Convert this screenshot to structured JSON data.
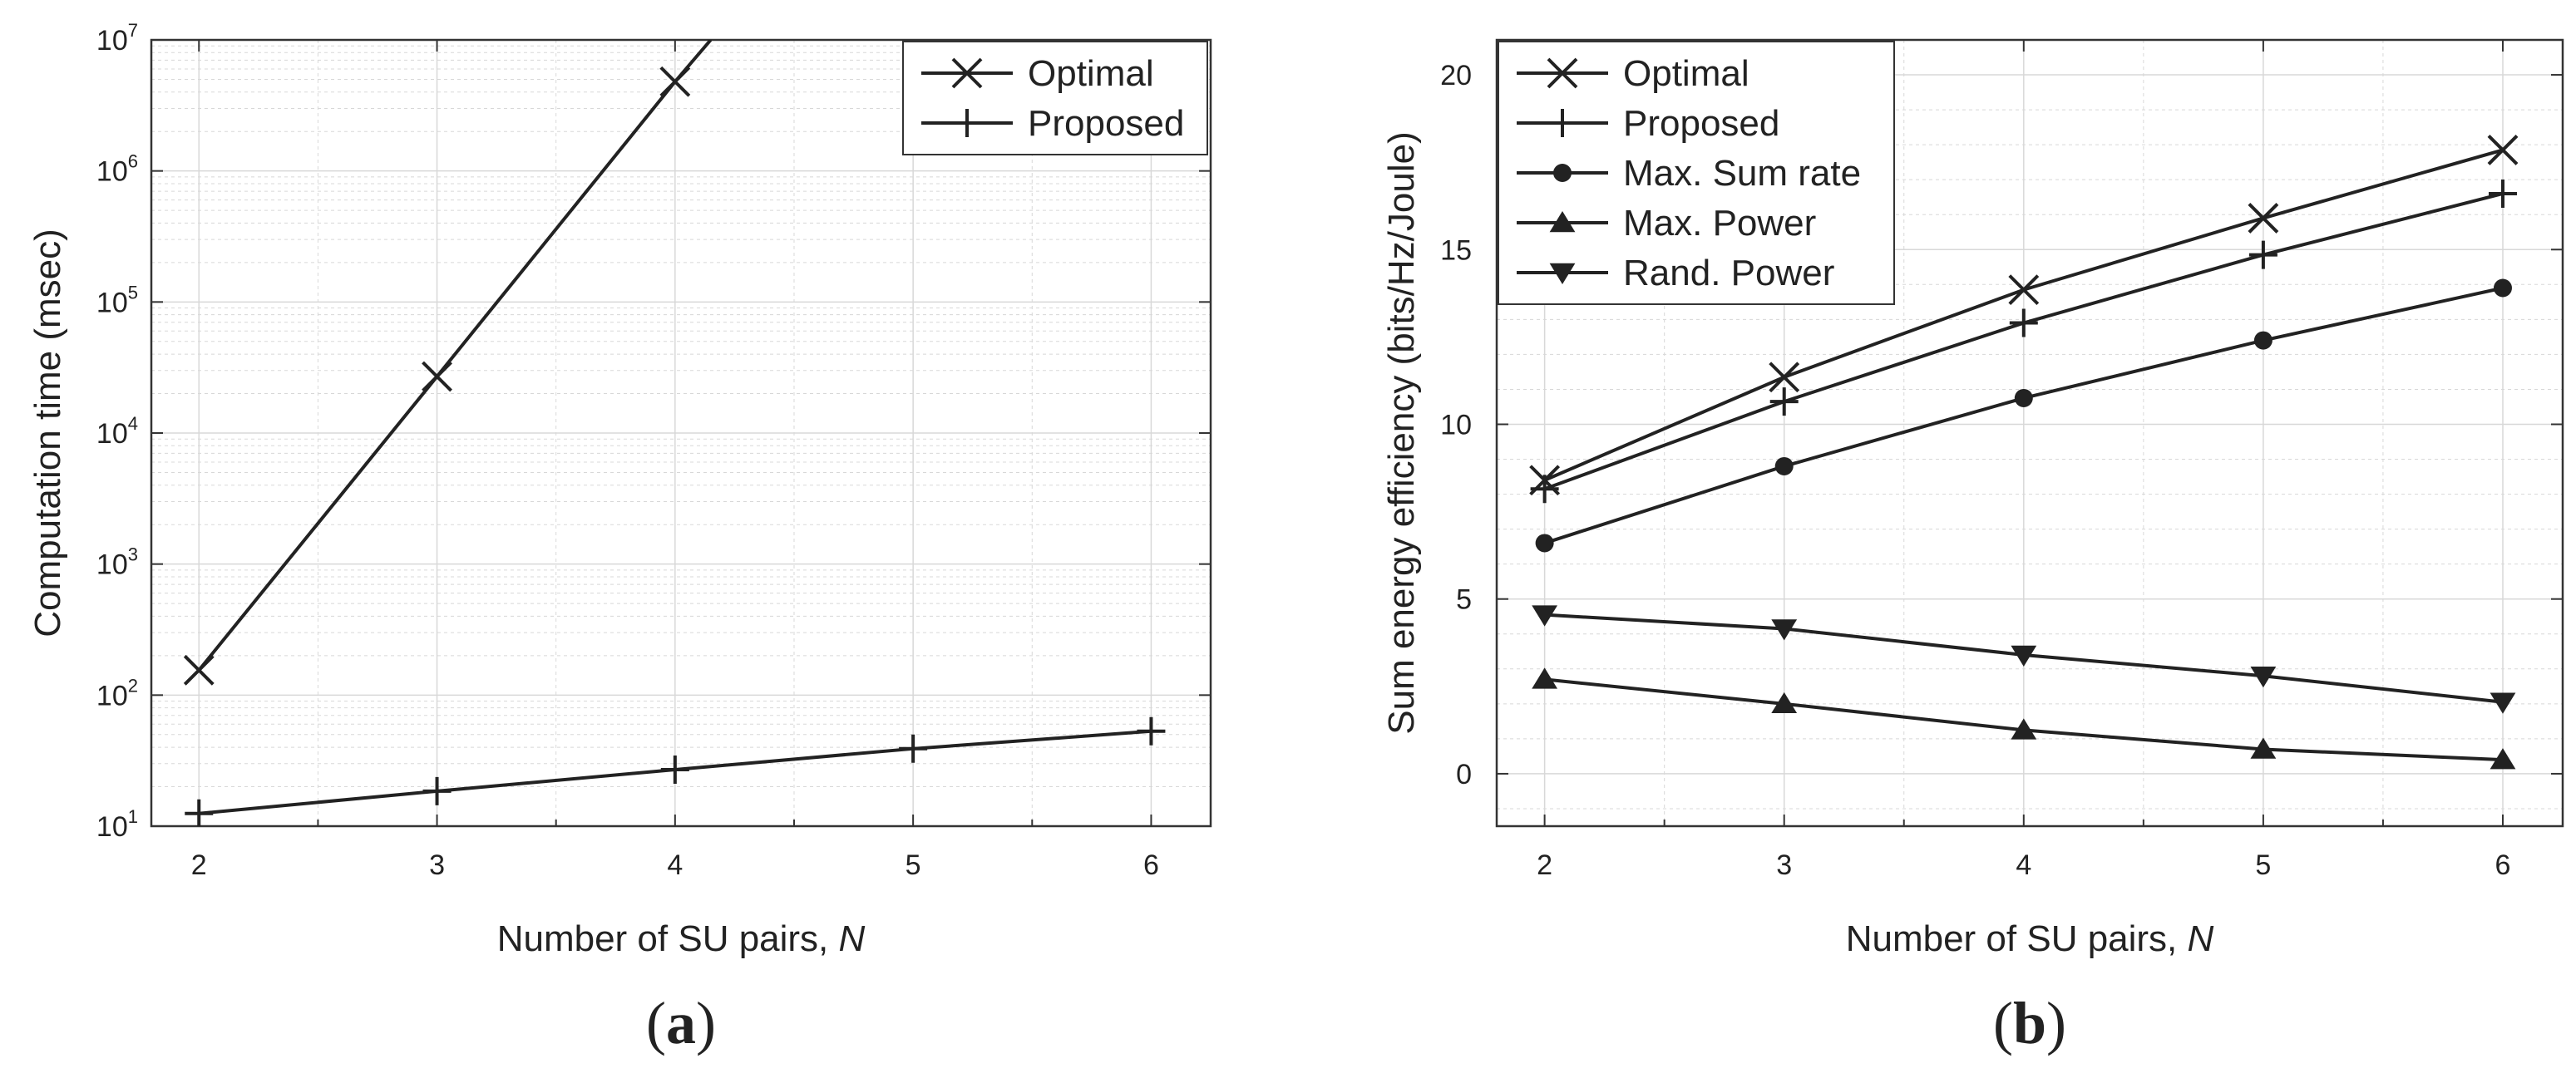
{
  "chart_data": [
    {
      "type": "line",
      "panel_label": "(a)",
      "panel_letter": "a",
      "xlabel": "Number of SU pairs, ",
      "xlabel_var": "N",
      "ylabel": "Computation time (msec)",
      "yscale": "log",
      "xlim": [
        1.8,
        6.25
      ],
      "ylim": [
        10,
        10000000
      ],
      "x_ticks": [
        2,
        3,
        4,
        5,
        6
      ],
      "y_ticks": [
        10,
        100,
        1000,
        10000,
        100000,
        1000000,
        10000000
      ],
      "y_tick_labels": [
        {
          "base": "10",
          "exp": "1"
        },
        {
          "base": "10",
          "exp": "2"
        },
        {
          "base": "10",
          "exp": "3"
        },
        {
          "base": "10",
          "exp": "4"
        },
        {
          "base": "10",
          "exp": "5"
        },
        {
          "base": "10",
          "exp": "6"
        },
        {
          "base": "10",
          "exp": "7"
        }
      ],
      "grid": true,
      "legend_position": "top-right",
      "series": [
        {
          "name": "Optimal",
          "marker": "x",
          "x": [
            2,
            3,
            4,
            4.15
          ],
          "y": [
            155,
            27000,
            4800000,
            10000000
          ],
          "marker_count": 3
        },
        {
          "name": "Proposed",
          "marker": "plus",
          "x": [
            2,
            3,
            4,
            5,
            6
          ],
          "y": [
            12.5,
            18.5,
            27,
            39,
            53
          ],
          "marker_count": 5
        }
      ]
    },
    {
      "type": "line",
      "panel_label": "(b)",
      "panel_letter": "b",
      "xlabel": "Number of SU pairs, ",
      "xlabel_var": "N",
      "ylabel": "Sum energy efficiency (bits/Hz/Joule)",
      "yscale": "linear",
      "xlim": [
        1.8,
        6.25
      ],
      "ylim": [
        -1.5,
        21
      ],
      "x_ticks": [
        2,
        3,
        4,
        5,
        6
      ],
      "y_ticks": [
        0,
        5,
        10,
        15,
        20
      ],
      "y_tick_labels": [
        "0",
        "5",
        "10",
        "15",
        "20"
      ],
      "grid": true,
      "legend_position": "top-left",
      "series": [
        {
          "name": "Optimal",
          "marker": "x",
          "x": [
            2,
            3,
            4,
            5,
            6
          ],
          "y": [
            8.4,
            11.35,
            13.85,
            15.9,
            17.85
          ],
          "marker_count": 5
        },
        {
          "name": "Proposed",
          "marker": "plus",
          "x": [
            2,
            3,
            4,
            5,
            6
          ],
          "y": [
            8.15,
            10.65,
            12.9,
            14.85,
            16.6
          ],
          "marker_count": 5
        },
        {
          "name": "Max. Sum rate",
          "marker": "circle",
          "x": [
            2,
            3,
            4,
            5,
            6
          ],
          "y": [
            6.6,
            8.8,
            10.75,
            12.4,
            13.9
          ],
          "marker_count": 5
        },
        {
          "name": "Max. Power",
          "marker": "triangle-up",
          "x": [
            2,
            3,
            4,
            5,
            6
          ],
          "y": [
            2.7,
            2.0,
            1.25,
            0.7,
            0.4
          ],
          "marker_count": 5
        },
        {
          "name": "Rand. Power",
          "marker": "triangle-down",
          "x": [
            2,
            3,
            4,
            5,
            6
          ],
          "y": [
            4.55,
            4.15,
            3.4,
            2.8,
            2.05
          ],
          "marker_count": 5
        }
      ]
    }
  ],
  "colors": {
    "line": "#222222",
    "grid": "#d8d8d8",
    "axis": "#333333"
  }
}
